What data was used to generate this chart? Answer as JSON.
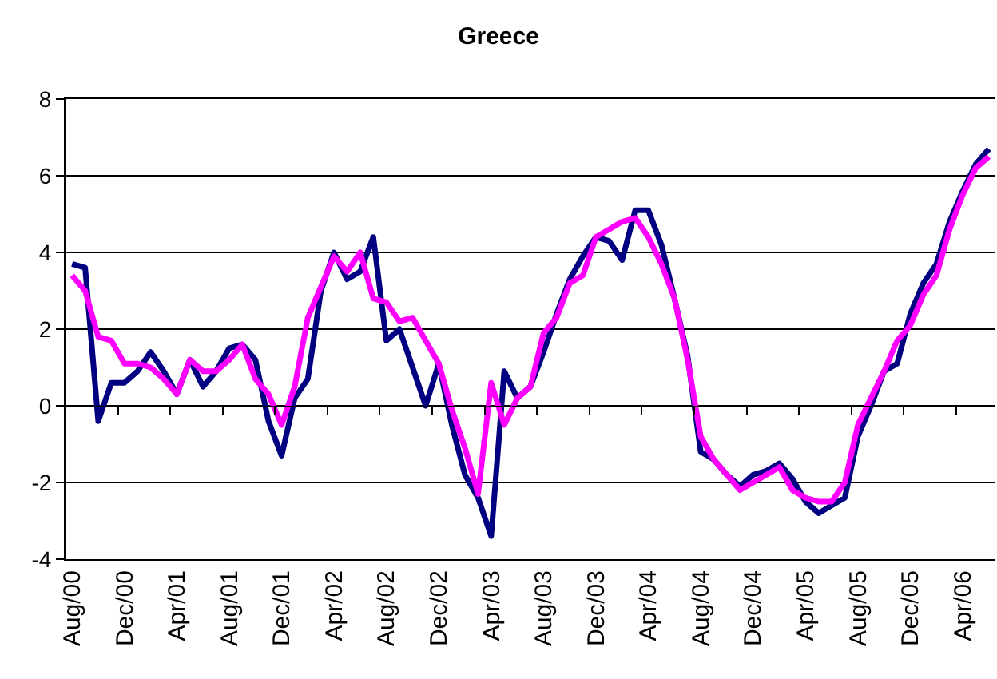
{
  "chart_data": {
    "type": "line",
    "title": "Greece",
    "categories": [
      "Aug/00",
      null,
      null,
      null,
      "Dec/00",
      null,
      null,
      null,
      "Apr/01",
      null,
      null,
      null,
      "Aug/01",
      null,
      null,
      null,
      "Dec/01",
      null,
      null,
      null,
      "Apr/02",
      null,
      null,
      null,
      "Aug/02",
      null,
      null,
      null,
      "Dec/02",
      null,
      null,
      null,
      "Apr/03",
      null,
      null,
      null,
      "Aug/03",
      null,
      null,
      null,
      "Dec/03",
      null,
      null,
      null,
      "Apr/04",
      null,
      null,
      null,
      "Aug/04",
      null,
      null,
      null,
      "Dec/04",
      null,
      null,
      null,
      "Apr/05",
      null,
      null,
      null,
      "Aug/05",
      null,
      null,
      null,
      "Dec/05",
      null,
      null,
      null,
      "Apr/06",
      null,
      null
    ],
    "series": [
      {
        "color": "#000080",
        "values": [
          3.7,
          3.6,
          -0.4,
          0.6,
          0.6,
          0.9,
          1.4,
          0.9,
          0.3,
          1.2,
          0.5,
          0.9,
          1.5,
          1.6,
          1.2,
          -0.4,
          -1.3,
          0.2,
          0.7,
          3.0,
          4.0,
          3.3,
          3.5,
          4.4,
          1.7,
          2.0,
          1.0,
          0.0,
          1.1,
          -0.5,
          -1.8,
          -2.4,
          -3.4,
          0.9,
          0.2,
          0.5,
          1.4,
          2.4,
          3.3,
          3.9,
          4.4,
          4.3,
          3.8,
          5.1,
          5.1,
          4.2,
          2.8,
          1.3,
          -1.2,
          -1.4,
          -1.8,
          -2.1,
          -1.8,
          -1.7,
          -1.5,
          -1.9,
          -2.5,
          -2.8,
          -2.6,
          -2.4,
          -0.8,
          0.0,
          0.9,
          1.1,
          2.4,
          3.2,
          3.7,
          4.8,
          5.6,
          6.3,
          6.7
        ]
      },
      {
        "color": "#ff00ff",
        "values": [
          3.4,
          3.0,
          1.8,
          1.7,
          1.1,
          1.1,
          1.0,
          0.7,
          0.3,
          1.2,
          0.9,
          0.9,
          1.2,
          1.6,
          0.7,
          0.3,
          -0.5,
          0.5,
          2.3,
          3.1,
          3.9,
          3.5,
          4.0,
          2.8,
          2.7,
          2.2,
          2.3,
          1.7,
          1.1,
          -0.1,
          -1.1,
          -2.3,
          0.6,
          -0.5,
          0.2,
          0.5,
          1.9,
          2.3,
          3.2,
          3.4,
          4.4,
          4.6,
          4.8,
          4.9,
          4.4,
          3.7,
          2.8,
          1.2,
          -0.8,
          -1.4,
          -1.8,
          -2.2,
          -2.0,
          -1.8,
          -1.6,
          -2.2,
          -2.4,
          -2.5,
          -2.5,
          -2.0,
          -0.5,
          0.2,
          0.9,
          1.7,
          2.1,
          2.9,
          3.4,
          4.6,
          5.5,
          6.2,
          6.5
        ]
      }
    ],
    "ylim": [
      -4,
      8
    ],
    "yticks": [
      -4,
      -2,
      0,
      2,
      4,
      6,
      8
    ],
    "grid": "y",
    "marker": "none",
    "line_style": "solid"
  }
}
